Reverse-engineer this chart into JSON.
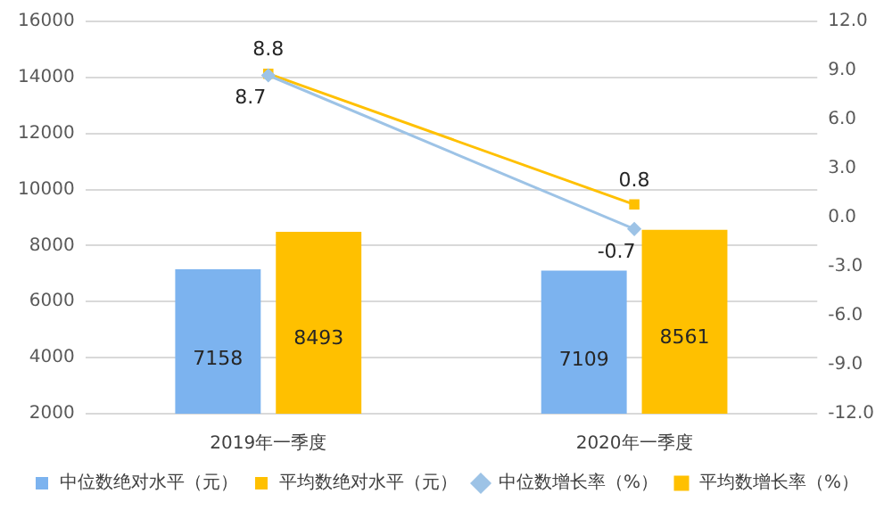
{
  "chart_data": {
    "type": "bar",
    "categories": [
      "2019年一季度",
      "2020年一季度"
    ],
    "series": [
      {
        "name": "中位数绝对水平（元）",
        "color": "#7cb3ef",
        "values": [
          7158,
          7109
        ]
      },
      {
        "name": "平均数绝对水平（元）",
        "color": "#ffc000",
        "values": [
          8493,
          8561
        ]
      },
      {
        "name": "中位数增长率（%）",
        "type": "line",
        "axis": "y2",
        "color": "#9dc3e6",
        "marker": "diamond",
        "values": [
          8.7,
          -0.7
        ]
      },
      {
        "name": "平均数增长率（%）",
        "type": "line",
        "axis": "y2",
        "color": "#ffc000",
        "marker": "square",
        "values": [
          8.8,
          0.8
        ]
      }
    ],
    "ylim": [
      2000,
      16000
    ],
    "yticks": [
      2000,
      4000,
      6000,
      8000,
      10000,
      12000,
      14000,
      16000
    ],
    "y2lim": [
      -12,
      12
    ],
    "y2ticks": [
      {
        "value": -12,
        "label": "-12.0"
      },
      {
        "value": -9,
        "label": "-9.0"
      },
      {
        "value": -6,
        "label": "-6.0"
      },
      {
        "value": -3,
        "label": "-3.0"
      },
      {
        "value": 0,
        "label": "0.0"
      },
      {
        "value": 3,
        "label": "3.0"
      },
      {
        "value": 6,
        "label": "6.0"
      },
      {
        "value": 9,
        "label": "9.0"
      },
      {
        "value": 12,
        "label": "12.0"
      }
    ],
    "grid": "y",
    "legend": "bottom",
    "data_labels": true
  }
}
